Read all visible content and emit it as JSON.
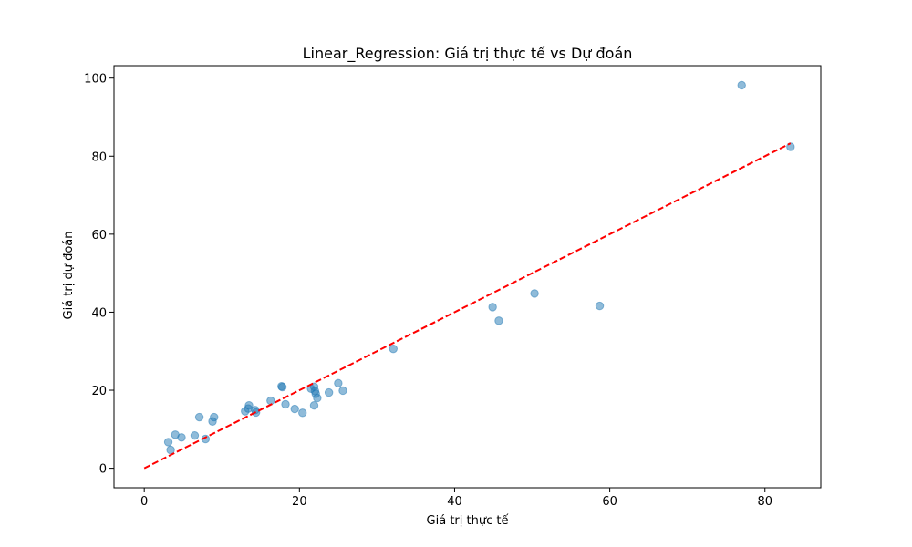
{
  "chart_data": {
    "type": "scatter",
    "title": "Linear_Regression: Giá trị thực tế vs Dự đoán",
    "xlabel": "Giá trị thực tế",
    "ylabel": "Giá trị dự đoán",
    "xlim": [
      -3.9,
      87.2
    ],
    "ylim": [
      -5.0,
      103.2
    ],
    "xticks": [
      0,
      20,
      40,
      60,
      80
    ],
    "yticks": [
      0,
      20,
      40,
      60,
      80,
      100
    ],
    "grid": false,
    "legend": "none",
    "colors": {
      "points": "#1f77b4",
      "reference_line": "#ff0000"
    },
    "series": [
      {
        "values": [
          {
            "x": 77.0,
            "y": 98.2
          },
          {
            "x": 83.3,
            "y": 82.4
          },
          {
            "x": 50.3,
            "y": 44.8
          },
          {
            "x": 44.9,
            "y": 41.3
          },
          {
            "x": 45.7,
            "y": 37.8
          },
          {
            "x": 58.7,
            "y": 41.6
          },
          {
            "x": 32.1,
            "y": 30.6
          },
          {
            "x": 25.0,
            "y": 21.8
          },
          {
            "x": 25.6,
            "y": 19.9
          },
          {
            "x": 23.8,
            "y": 19.4
          },
          {
            "x": 21.5,
            "y": 20.4
          },
          {
            "x": 21.9,
            "y": 20.9
          },
          {
            "x": 22.0,
            "y": 19.8
          },
          {
            "x": 22.1,
            "y": 19.1
          },
          {
            "x": 22.3,
            "y": 18.0
          },
          {
            "x": 21.9,
            "y": 16.1
          },
          {
            "x": 17.7,
            "y": 21.0
          },
          {
            "x": 17.8,
            "y": 20.8
          },
          {
            "x": 16.3,
            "y": 17.3
          },
          {
            "x": 18.2,
            "y": 16.4
          },
          {
            "x": 19.4,
            "y": 15.2
          },
          {
            "x": 20.4,
            "y": 14.2
          },
          {
            "x": 13.0,
            "y": 14.6
          },
          {
            "x": 13.4,
            "y": 15.3
          },
          {
            "x": 13.5,
            "y": 16.1
          },
          {
            "x": 14.3,
            "y": 14.9
          },
          {
            "x": 14.4,
            "y": 14.3
          },
          {
            "x": 7.1,
            "y": 13.1
          },
          {
            "x": 9.0,
            "y": 13.1
          },
          {
            "x": 8.8,
            "y": 12.0
          },
          {
            "x": 6.5,
            "y": 8.4
          },
          {
            "x": 7.9,
            "y": 7.5
          },
          {
            "x": 4.0,
            "y": 8.6
          },
          {
            "x": 4.8,
            "y": 7.9
          },
          {
            "x": 3.1,
            "y": 6.7
          },
          {
            "x": 3.4,
            "y": 4.7
          }
        ]
      }
    ],
    "reference_line": {
      "from": [
        0,
        0
      ],
      "to": [
        83.3,
        83.3
      ],
      "style": "dashed"
    }
  }
}
